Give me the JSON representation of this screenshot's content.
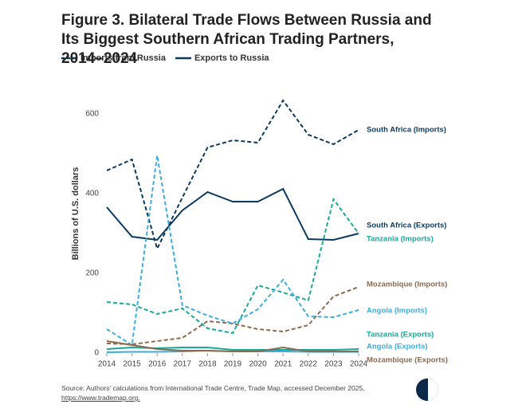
{
  "chart_data": {
    "type": "line",
    "title": "Figure 3. Bilateral Trade Flows Between Russia and Its Biggest Southern African Trading Partners, 2014–2024",
    "legend": [
      {
        "label": "Imports from Russia",
        "dashed": true
      },
      {
        "label": "Exports to Russia",
        "dashed": false
      }
    ],
    "ylabel": "Billions of U.S. dollars",
    "x": [
      2014,
      2015,
      2016,
      2017,
      2018,
      2019,
      2020,
      2021,
      2022,
      2023,
      2024
    ],
    "xlim": [
      2014,
      2024
    ],
    "xticks": [
      2014,
      2015,
      2016,
      2017,
      2018,
      2019,
      2020,
      2021,
      2022,
      2023,
      2024
    ],
    "ylim": [
      0,
      650
    ],
    "yticks": [
      0,
      200,
      400,
      600
    ],
    "grid": false,
    "series": [
      {
        "name": "South Africa (Imports)",
        "color": "#0b3a5c",
        "dashed": true,
        "values": [
          458,
          486,
          262,
          390,
          516,
          534,
          528,
          634,
          548,
          524,
          560
        ]
      },
      {
        "name": "South Africa (Exports)",
        "color": "#0b3a5c",
        "dashed": false,
        "values": [
          366,
          292,
          284,
          358,
          404,
          380,
          380,
          412,
          286,
          284,
          300
        ]
      },
      {
        "name": "Tanzania (Imports)",
        "color": "#1aa898",
        "dashed": true,
        "values": [
          128,
          122,
          98,
          112,
          62,
          50,
          170,
          152,
          132,
          386,
          300
        ]
      },
      {
        "name": "Mozambique (Imports)",
        "color": "#8b6a4e",
        "dashed": true,
        "values": [
          24,
          22,
          30,
          38,
          80,
          74,
          60,
          54,
          70,
          142,
          166
        ]
      },
      {
        "name": "Angola (Imports)",
        "color": "#3aaedc",
        "dashed": true,
        "values": [
          60,
          20,
          496,
          120,
          94,
          74,
          110,
          184,
          92,
          90,
          108
        ]
      },
      {
        "name": "Tanzania (Exports)",
        "color": "#1aa898",
        "dashed": false,
        "values": [
          10,
          14,
          12,
          14,
          14,
          8,
          8,
          8,
          8,
          8,
          10
        ]
      },
      {
        "name": "Angola (Exports)",
        "color": "#3aaedc",
        "dashed": false,
        "values": [
          2,
          3,
          3,
          4,
          6,
          4,
          4,
          4,
          3,
          3,
          3
        ]
      },
      {
        "name": "Mozambique (Exports)",
        "color": "#8b6a4e",
        "dashed": false,
        "values": [
          30,
          20,
          10,
          6,
          6,
          4,
          4,
          14,
          4,
          4,
          4
        ]
      }
    ],
    "source": "Source: Authors' calculations from International Trade Centre, Trade Map, accessed December 2025,",
    "source_link": "https://www.trademap.org."
  }
}
